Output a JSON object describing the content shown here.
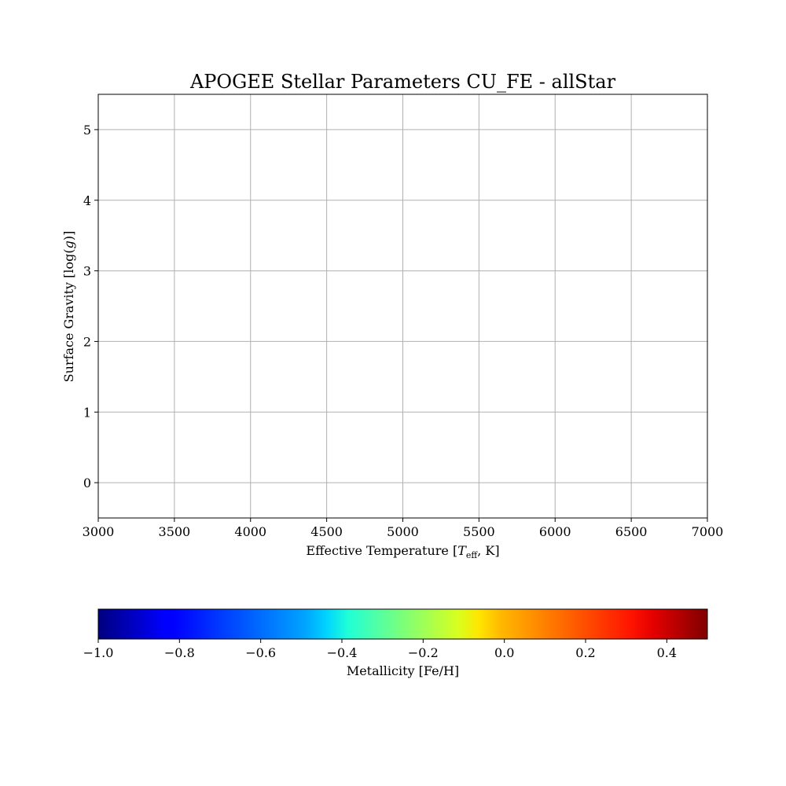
{
  "chart_data": [
    {
      "type": "scatter",
      "title": "APOGEE Stellar Parameters CU_FE - allStar",
      "xlabel_prefix": "Effective Temperature [",
      "xlabel_var": "T",
      "xlabel_sub": "eff",
      "xlabel_suffix": ", K]",
      "ylabel_prefix": "Surface Gravity [",
      "ylabel_func": "log(",
      "ylabel_var": "g",
      "ylabel_suffix": ")]",
      "xlim": [
        3000,
        7000
      ],
      "ylim": [
        -0.5,
        5.5
      ],
      "xticks": [
        3000,
        3500,
        4000,
        4500,
        5000,
        5500,
        6000,
        6500,
        7000
      ],
      "yticks": [
        0,
        1,
        2,
        3,
        4,
        5
      ],
      "grid": true,
      "series": [],
      "colormap": "jet"
    },
    {
      "type": "colorbar",
      "colormap": "jet",
      "orientation": "horizontal",
      "range": [
        -1.0,
        0.5
      ],
      "ticks": [
        -1.0,
        -0.8,
        -0.6,
        -0.4,
        -0.2,
        0.0,
        0.2,
        0.4
      ],
      "tick_labels": [
        "−1.0",
        "−0.8",
        "−0.6",
        "−0.4",
        "−0.2",
        "0.0",
        "0.2",
        "0.4"
      ],
      "label": "Metallicity [Fe/H]"
    }
  ]
}
